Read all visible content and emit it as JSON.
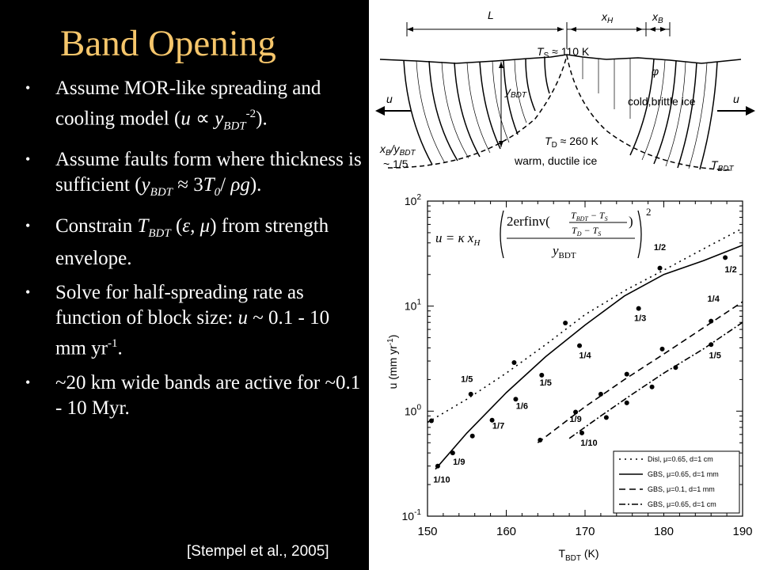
{
  "slide": {
    "title": "Band Opening",
    "citation": "[Stempel et al., 2005]",
    "bullets": [
      {
        "parts": [
          {
            "t": "Assume MOR-like spreading and cooling model ("
          },
          {
            "t": "u",
            "i": true
          },
          {
            "t": " ∝ "
          },
          {
            "t": "y",
            "i": true
          },
          {
            "t": "BDT",
            "i": true,
            "sub": true
          },
          {
            "t": "-2",
            "sup": true
          },
          {
            "t": ")."
          }
        ]
      },
      {
        "parts": [
          {
            "t": "Assume faults form where thickness is sufficient ("
          },
          {
            "t": "y",
            "i": true
          },
          {
            "t": "BDT",
            "i": true,
            "sub": true
          },
          {
            "t": " ≈ 3"
          },
          {
            "t": "T",
            "i": true
          },
          {
            "t": "0",
            "i": true,
            "sub": true
          },
          {
            "t": "/ "
          },
          {
            "t": "ρg",
            "i": true
          },
          {
            "t": ")."
          }
        ]
      },
      {
        "parts": [
          {
            "t": "Constrain "
          },
          {
            "t": "T",
            "i": true
          },
          {
            "t": "BDT",
            "i": true,
            "sub": true
          },
          {
            "t": " ("
          },
          {
            "t": "ε, μ",
            "i": true
          },
          {
            "t": ") from strength envelope."
          }
        ]
      },
      {
        "parts": [
          {
            "t": "Solve for half-spreading rate as function of block size: "
          },
          {
            "t": "u",
            "i": true
          },
          {
            "t": " ~ 0.1 - 10 mm yr"
          },
          {
            "t": "-1",
            "sup": true
          },
          {
            "t": "."
          }
        ]
      },
      {
        "parts": [
          {
            "t": "~20 km wide bands are active for ~0.1 - 10 Myr."
          }
        ]
      }
    ]
  },
  "diagram": {
    "labels": {
      "L": "L",
      "xH": "x",
      "xH_sub": "H",
      "xB": "x",
      "xB_sub": "B",
      "Ts": "T",
      "Ts_sub": "S",
      "Ts_val": " ≈ 110 K",
      "Td": "T",
      "Td_sub": "D",
      "Td_val": " ≈ 260 K",
      "ybdt": "y",
      "ybdt_sub": "BDT",
      "phi": "φ",
      "cold": "cold,brittle ice",
      "warm": "warm, ductile ice",
      "u_left": "u",
      "u_right": "u",
      "ratio1": "x",
      "ratio1_sub": "B",
      "ratio2": "/y",
      "ratio2_sub": "BDT",
      "ratio3": "~ 1/5",
      "tbdt": "T",
      "tbdt_sub": "BDT"
    }
  },
  "chart_data": {
    "type": "line",
    "xscale": "linear",
    "yscale": "log",
    "xlim": [
      150,
      190
    ],
    "ylim": [
      0.1,
      100
    ],
    "xticks": [
      "150",
      "160",
      "170",
      "180",
      "190"
    ],
    "yticks": [
      {
        "base": "10",
        "exp": "-1"
      },
      {
        "base": "10",
        "exp": "0"
      },
      {
        "base": "10",
        "exp": "1"
      },
      {
        "base": "10",
        "exp": "2"
      }
    ],
    "xlabel": "T",
    "xlabel_sub": "BDT",
    "xlabel_unit": " (K)",
    "ylabel": "u (mm yr",
    "ylabel_sup": "-1",
    "ylabel_end": ")",
    "equation": {
      "lhs": "u = κ x",
      "lhs_sub": "H",
      "num": "2erfinv(",
      "frac_top": "T",
      "frac_top_sub": "BDT",
      "frac_top_rest": " − T",
      "frac_top_rest_sub": "S",
      "frac_bot": "T",
      "frac_bot_sub": "D",
      "frac_bot_rest": " − T",
      "frac_bot_rest_sub": "S",
      "num_close": ")",
      "den": "y",
      "den_sub": "BDT",
      "power": "2"
    },
    "legend_position": "bottom-right",
    "series": [
      {
        "name": "Disl, μ=0.65, d=1 cm",
        "dash": "2,5",
        "line": [
          [
            150,
            0.78
          ],
          [
            155,
            1.3
          ],
          [
            160,
            2.3
          ],
          [
            165,
            4.3
          ],
          [
            170,
            8.3
          ],
          [
            175,
            14
          ],
          [
            180,
            22
          ],
          [
            185,
            35
          ],
          [
            190,
            55
          ]
        ],
        "points": [
          [
            150.5,
            0.81
          ],
          [
            155.5,
            1.45
          ],
          [
            161,
            2.9
          ],
          [
            167.5,
            6.9
          ],
          [
            179.5,
            23
          ]
        ],
        "labels": [
          {
            "x": 155,
            "y": 1.9,
            "t": "1/5"
          },
          {
            "x": 179.5,
            "y": 34,
            "t": "1/2"
          }
        ]
      },
      {
        "name": "GBS, μ=0.65, d=1 mm",
        "dash": "",
        "line": [
          [
            151,
            0.28
          ],
          [
            155,
            0.62
          ],
          [
            160,
            1.5
          ],
          [
            165,
            3.3
          ],
          [
            170,
            6.6
          ],
          [
            175,
            12.5
          ],
          [
            180,
            20
          ],
          [
            185,
            27
          ],
          [
            190,
            38
          ]
        ],
        "points": [
          [
            151.3,
            0.3
          ],
          [
            153.2,
            0.4
          ],
          [
            155.7,
            0.58
          ],
          [
            158.2,
            0.82
          ],
          [
            161.2,
            1.3
          ],
          [
            164.5,
            2.2
          ],
          [
            169.3,
            4.2
          ],
          [
            176.8,
            9.5
          ],
          [
            187.8,
            29
          ]
        ],
        "labels": [
          {
            "x": 151.8,
            "y": 0.21,
            "t": "1/10"
          },
          {
            "x": 154,
            "y": 0.31,
            "t": "1/9"
          },
          {
            "x": 159,
            "y": 0.68,
            "t": "1/7"
          },
          {
            "x": 162,
            "y": 1.05,
            "t": "1/6"
          },
          {
            "x": 165,
            "y": 1.75,
            "t": "1/5"
          },
          {
            "x": 170,
            "y": 3.2,
            "t": "1/4"
          },
          {
            "x": 177,
            "y": 7.2,
            "t": "1/3"
          },
          {
            "x": 188.5,
            "y": 21,
            "t": "1/2"
          }
        ]
      },
      {
        "name": "GBS, μ=0.1, d=1 mm",
        "dash": "8,5",
        "line": [
          [
            164,
            0.5
          ],
          [
            170,
            1.1
          ],
          [
            175,
            2
          ],
          [
            180,
            3.5
          ],
          [
            185,
            6.2
          ],
          [
            190,
            11
          ]
        ],
        "points": [
          [
            164.3,
            0.53
          ],
          [
            168.8,
            0.98
          ],
          [
            172,
            1.45
          ],
          [
            175.3,
            2.25
          ],
          [
            179.8,
            3.9
          ],
          [
            186,
            7.2
          ]
        ],
        "labels": [
          {
            "x": 168.8,
            "y": 0.79,
            "t": "1/9"
          },
          {
            "x": 186.3,
            "y": 11,
            "t": "1/4"
          }
        ]
      },
      {
        "name": "GBS, μ=0.65, d=1 cm",
        "dash": "8,3,2,3",
        "line": [
          [
            168,
            0.55
          ],
          [
            172,
            0.9
          ],
          [
            176,
            1.45
          ],
          [
            180,
            2.3
          ],
          [
            185,
            3.9
          ],
          [
            190,
            7
          ]
        ],
        "points": [
          [
            169.6,
            0.62
          ],
          [
            172.7,
            0.87
          ],
          [
            175.3,
            1.2
          ],
          [
            178.5,
            1.7
          ],
          [
            181.5,
            2.6
          ],
          [
            186,
            4.3
          ]
        ],
        "labels": [
          {
            "x": 170.5,
            "y": 0.47,
            "t": "1/10"
          },
          {
            "x": 186.5,
            "y": 3.2,
            "t": "1/5"
          }
        ]
      }
    ]
  }
}
